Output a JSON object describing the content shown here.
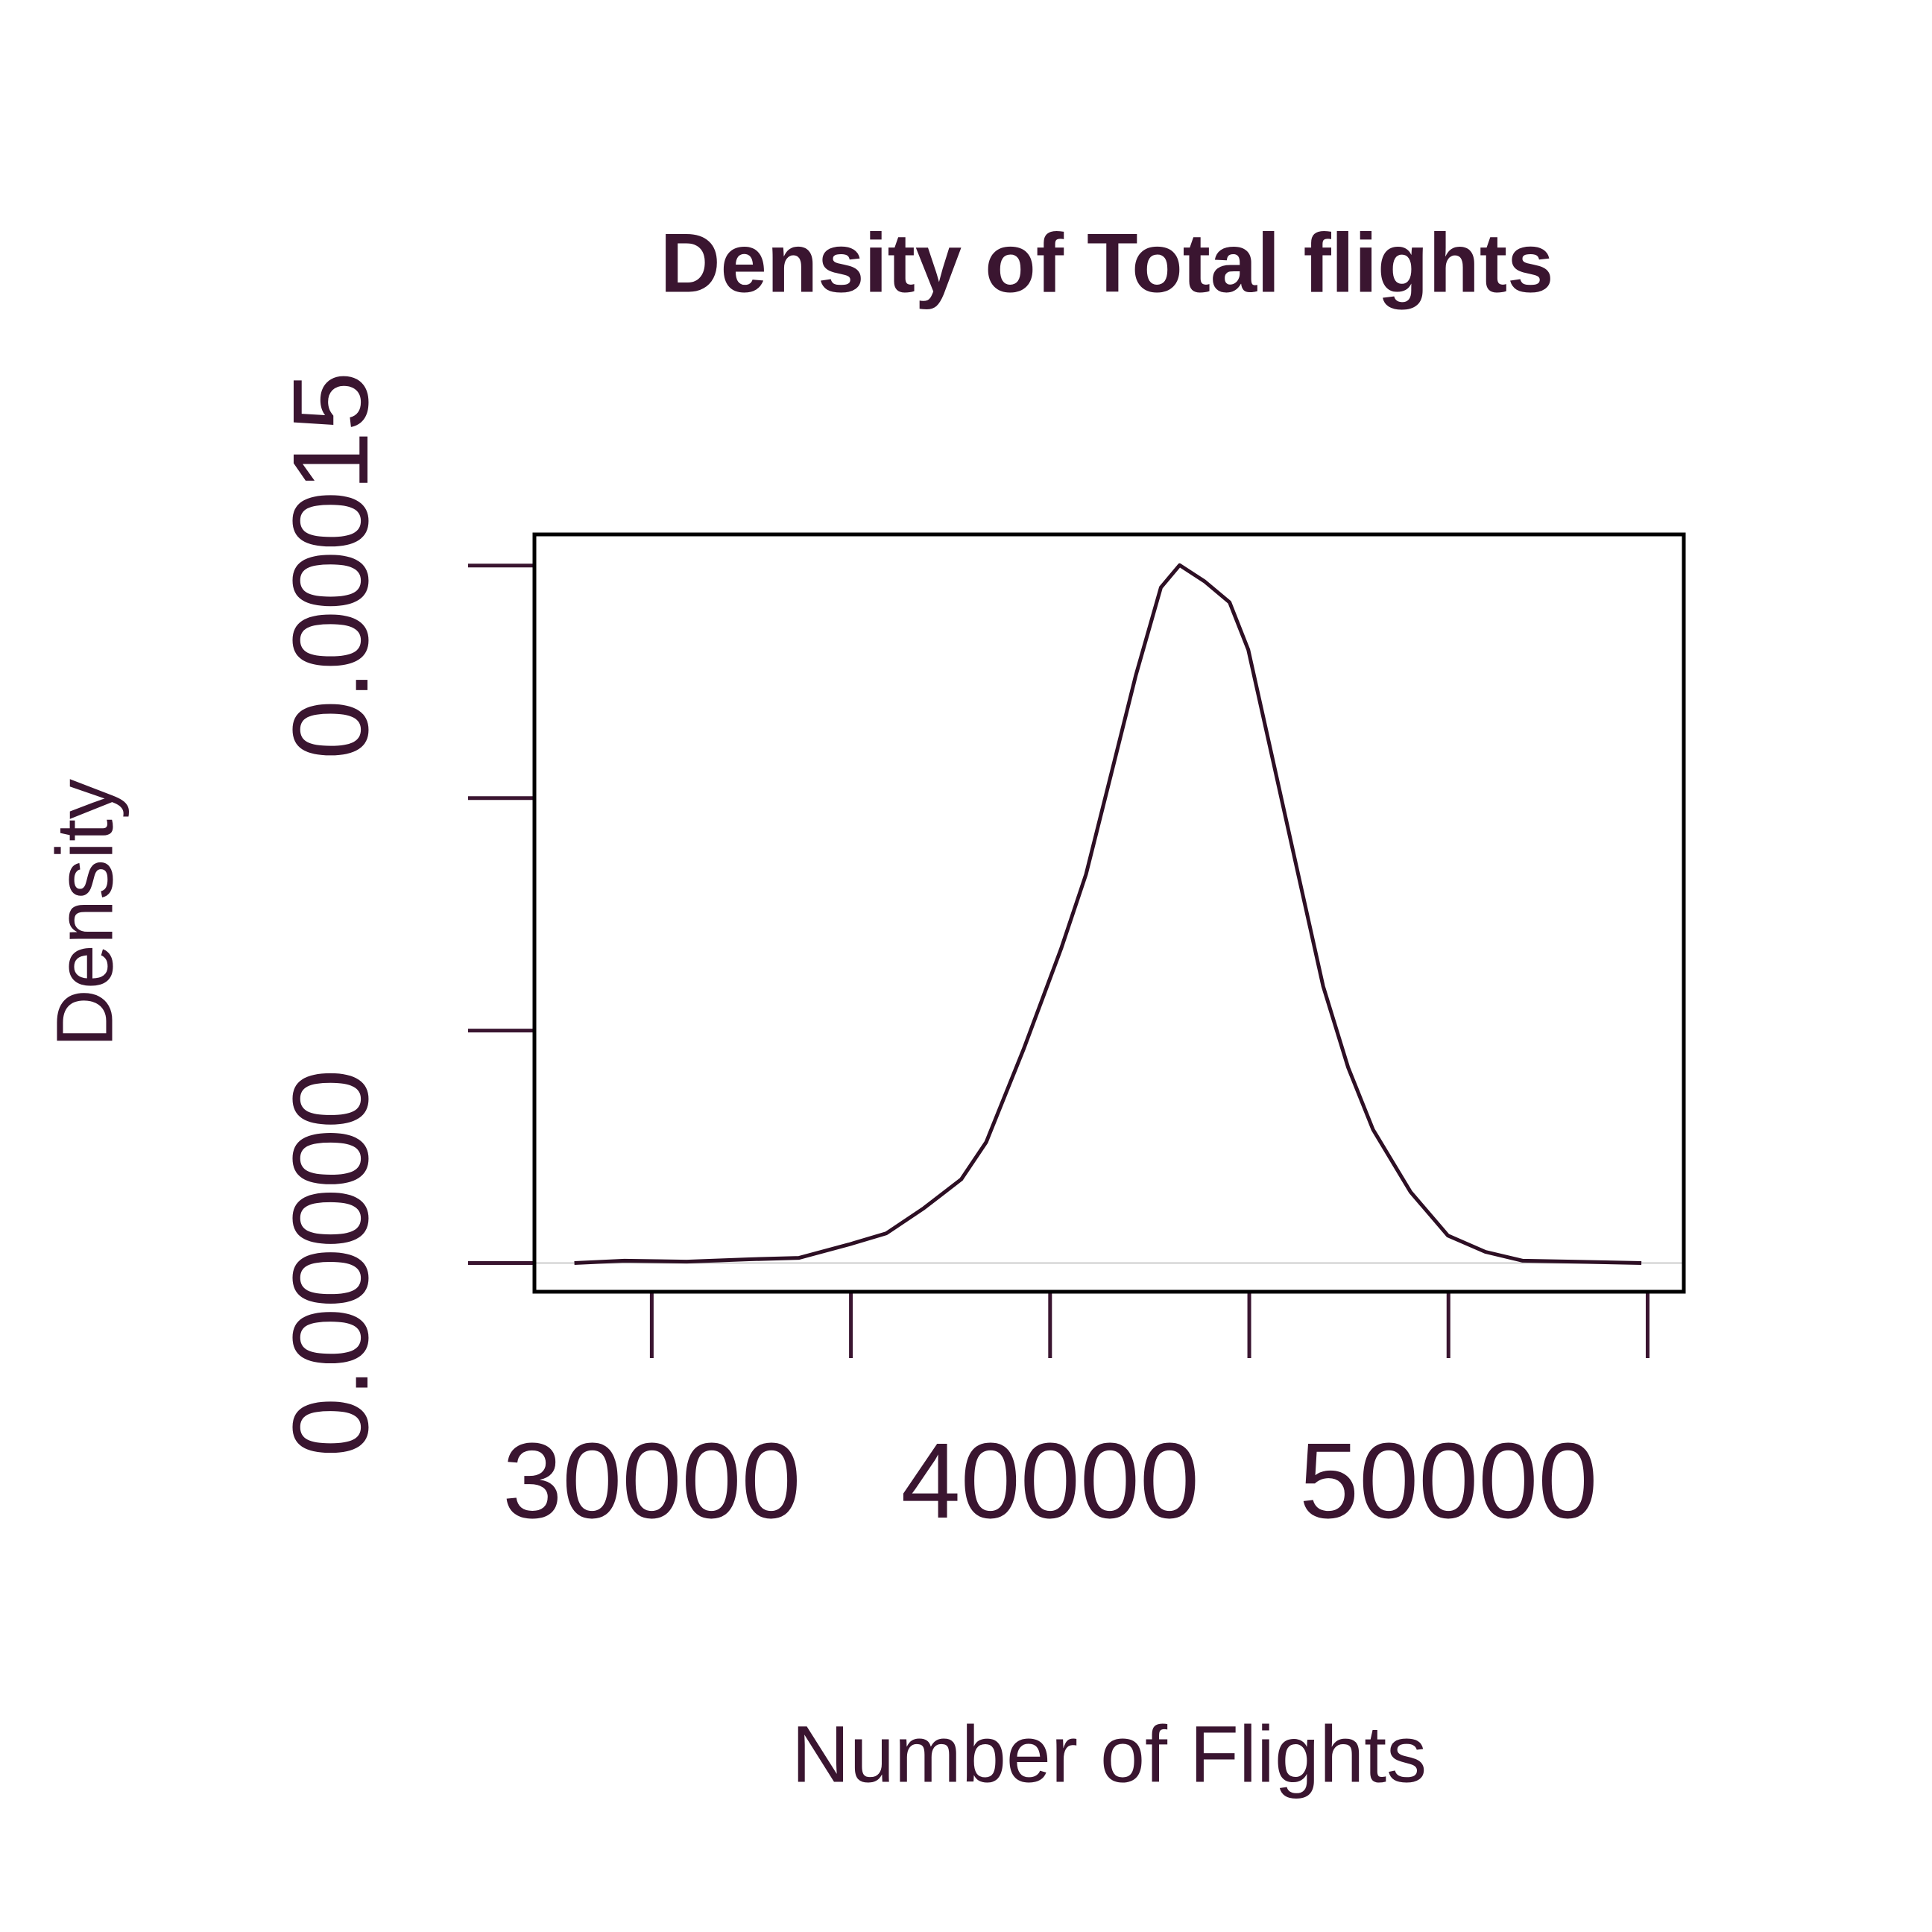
{
  "chart_data": {
    "type": "line",
    "title": "Density of Total flights",
    "x_label": "Number of Flights",
    "y_label": "Density",
    "color": "#2d0f24",
    "x": [
      28058,
      29311,
      30877,
      32444,
      33697,
      34950,
      35890,
      36830,
      37770,
      38396,
      39336,
      40276,
      40902,
      41529,
      42155,
      42782,
      43252,
      43878,
      44505,
      44975,
      45602,
      46228,
      46855,
      47481,
      48108,
      49048,
      49987,
      50927,
      51867,
      53120,
      54843
    ],
    "values": [
      0,
      5e-07,
      3e-07,
      8e-07,
      1.1e-06,
      4e-06,
      6.4e-06,
      1.18e-05,
      1.8e-05,
      2.6e-05,
      4.6e-05,
      6.76e-05,
      8.36e-05,
      0.000105,
      0.0001265,
      0.0001453,
      0.0001501,
      0.0001466,
      0.0001421,
      0.0001319,
      0.0001078,
      8.36e-05,
      5.95e-05,
      4.21e-05,
      2.87e-05,
      1.53e-05,
      5.9e-06,
      2.4e-06,
      5e-07,
      3e-07,
      0
    ],
    "xlim": [
      27055,
      55908
    ],
    "xticks": [
      30000,
      {
        "value": 35000,
        "label": null
      },
      40000,
      {
        "value": 45000,
        "label": null
      },
      50000,
      {
        "value": 55000,
        "label": null
      }
    ],
    "ylim": [
      -6.17e-06,
      0.0001567
    ],
    "yticks": [
      {
        "value": 0,
        "label": "0.00000"
      },
      {
        "value": 5e-05,
        "label": null
      },
      {
        "value": 0.0001,
        "label": null
      },
      {
        "value": 0.00015,
        "label": "0.00015"
      }
    ]
  }
}
